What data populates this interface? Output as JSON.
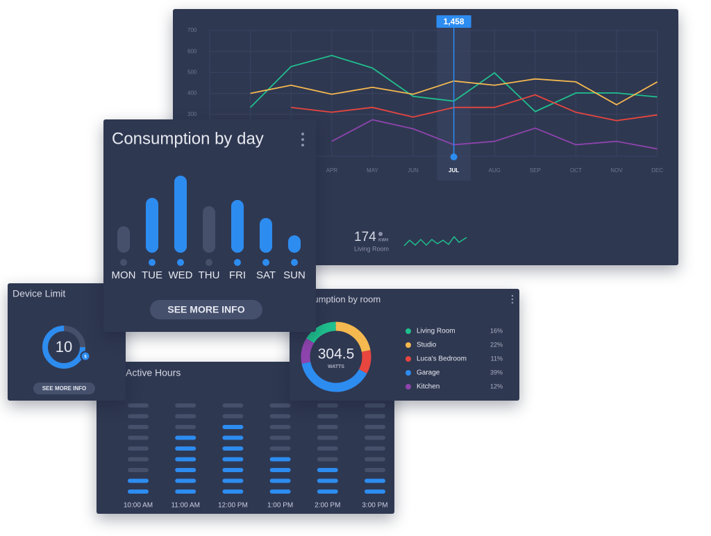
{
  "chart_data": [
    {
      "type": "line",
      "categories": [
        null,
        null,
        null,
        "APR",
        "MAY",
        "JUN",
        "JUL",
        "AUG",
        "SEP",
        "OCT",
        "NOV",
        "DEC"
      ],
      "series": [
        {
          "color": "#1fc08e",
          "values": [
            null,
            333,
            528,
            581,
            521,
            386,
            363,
            498,
            313,
            402,
            402,
            383
          ]
        },
        {
          "color": "#f5b94f",
          "values": [
            null,
            400,
            439,
            396,
            429,
            396,
            459,
            439,
            469,
            455,
            346,
            455
          ]
        },
        {
          "color": "#e8463f",
          "values": [
            null,
            null,
            333,
            310,
            333,
            287,
            333,
            333,
            393,
            310,
            270,
            297
          ]
        },
        {
          "color": "#8e44ad",
          "values": [
            null,
            null,
            null,
            171,
            274,
            231,
            155,
            171,
            234,
            155,
            171,
            135
          ]
        }
      ],
      "ylim": [
        100,
        700
      ],
      "yticks": [
        300,
        400,
        500,
        600,
        700
      ],
      "grid": true,
      "highlight": "JUL",
      "tooltip": "1,458",
      "stat": {
        "value": 174,
        "unit": "KWH",
        "label": "Living Room"
      }
    },
    {
      "type": "bar",
      "title": "Consumption by day",
      "categories": [
        "MON",
        "TUE",
        "WED",
        "THU",
        "FRI",
        "SAT",
        "SUN"
      ],
      "values": [
        38,
        79,
        111,
        67,
        76,
        50,
        25
      ],
      "colors": [
        "#46506b",
        "#2d8cf0",
        "#2d8cf0",
        "#46506b",
        "#2d8cf0",
        "#2d8cf0",
        "#2d8cf0"
      ],
      "ylim": [
        0,
        120
      ],
      "button": "SEE MORE INFO"
    },
    {
      "type": "gauge",
      "title": "Device Limit",
      "value": 10,
      "badge": 5,
      "button": "SEE MORE INFO"
    },
    {
      "type": "heatgrid",
      "title": "Active Hours",
      "categories": [
        "10:00 AM",
        "11:00 AM",
        "12:00 PM",
        "1:00 PM",
        "2:00 PM",
        "3:00 PM"
      ],
      "values": [
        2,
        6,
        7,
        4,
        3,
        2
      ],
      "ylim": [
        0,
        9
      ],
      "color": "#2d8cf0"
    },
    {
      "type": "donut",
      "title": "Consumption by room",
      "center_label": 304.5,
      "center_unit": "WATTS",
      "categories": [
        "Living Room",
        "Studio",
        "Luca's Bedroom",
        "Garage",
        "Kitchen"
      ],
      "values": [
        16,
        22,
        11,
        39,
        12
      ],
      "value_labels": [
        "16%",
        "22%",
        "11%",
        "39%",
        "12%"
      ],
      "colors": [
        "#1fc08e",
        "#f5b94f",
        "#e8463f",
        "#2d8cf0",
        "#8e44ad"
      ]
    }
  ]
}
